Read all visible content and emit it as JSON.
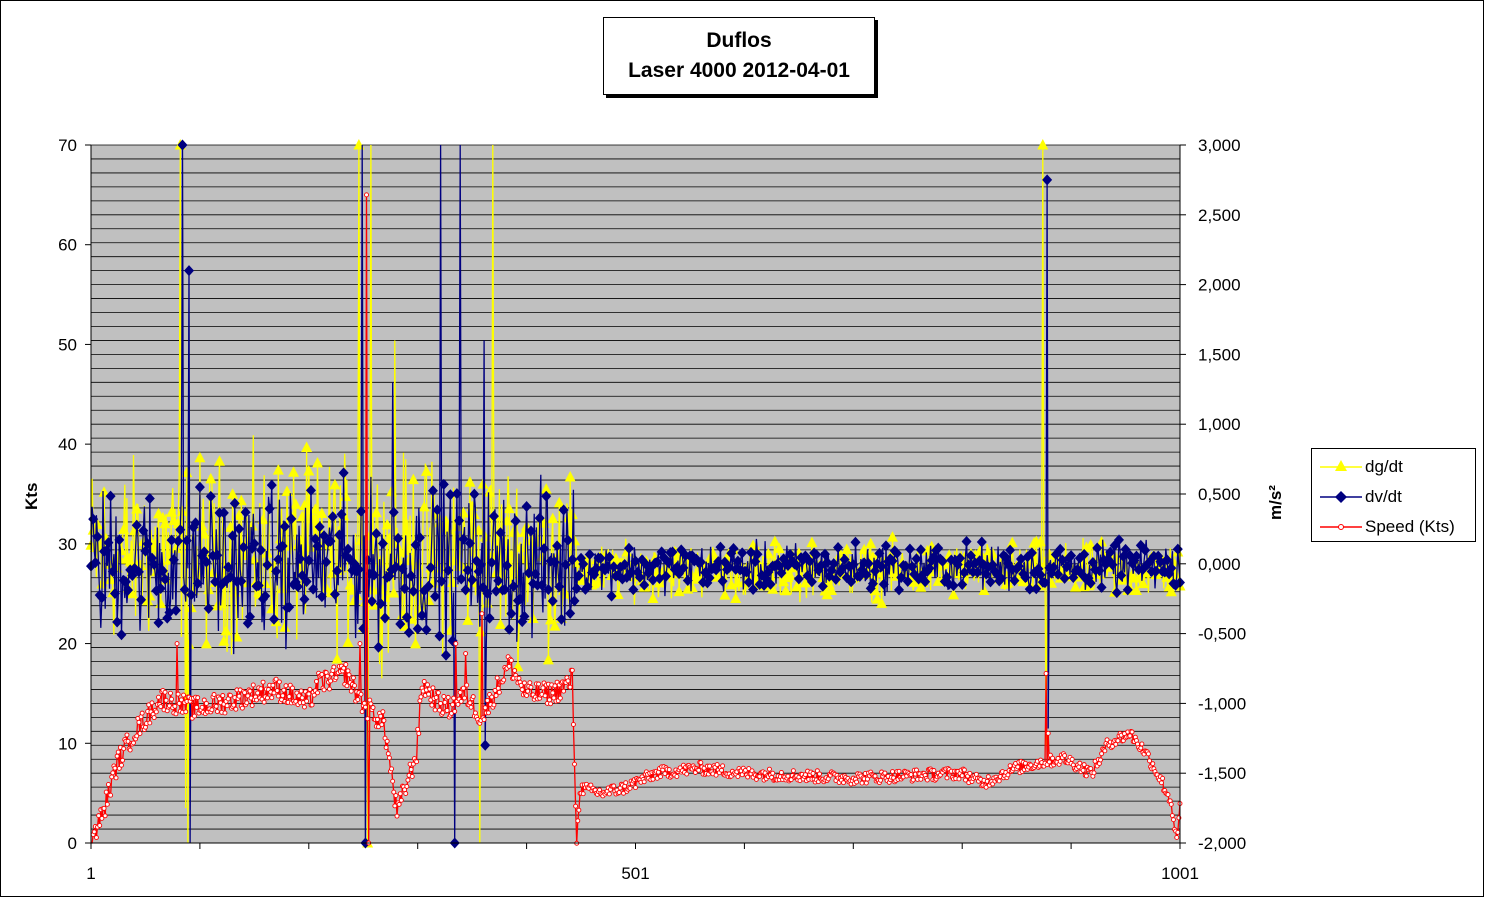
{
  "chart_data": {
    "type": "line",
    "title": "Duflos",
    "subtitle": "Laser 4000  2012-04-01",
    "ylabel": "Kts",
    "y2label": "m/s²",
    "xlim": [
      1,
      1001
    ],
    "ylim": [
      0,
      70
    ],
    "y2lim": [
      -2,
      3
    ],
    "x_tick_labels": [
      "1",
      "501",
      "1001"
    ],
    "y_tick_labels": [
      "0",
      "10",
      "20",
      "30",
      "40",
      "50",
      "60",
      "70"
    ],
    "y2_tick_labels": [
      "-2,000",
      "-1,500",
      "-1,000",
      "-0,500",
      "0,000",
      "0,500",
      "1,000",
      "1,500",
      "2,000",
      "2,500",
      "3,000"
    ],
    "grid": true,
    "legend_position": "right",
    "colors": {
      "plot_background": "#c0c0c0",
      "dg_dt": "#ffff00",
      "dv_dt": "#000080",
      "speed": "#ff0000"
    },
    "series": [
      {
        "name": "dg/dt",
        "axis": "secondary",
        "noise_regions": [
          {
            "x": [
              1,
              445
            ],
            "range": [
              -0.6,
              0.75
            ]
          },
          {
            "x": [
              445,
              1001
            ],
            "range": [
              -0.25,
              0.15
            ]
          }
        ],
        "spikes": [
          {
            "x": 83,
            "y": 3.0
          },
          {
            "x": 90,
            "y": -2.0
          },
          {
            "x": 88,
            "y": -1.75
          },
          {
            "x": 247,
            "y": 3.0
          },
          {
            "x": 255,
            "y": -2.0
          },
          {
            "x": 258,
            "y": 3.0
          },
          {
            "x": 280,
            "y": 1.6
          },
          {
            "x": 370,
            "y": 3.0
          },
          {
            "x": 358,
            "y": -2.0
          },
          {
            "x": 875,
            "y": 3.0
          },
          {
            "x": 878,
            "y": -1.3
          }
        ]
      },
      {
        "name": "dv/dt",
        "axis": "secondary",
        "noise_regions": [
          {
            "x": [
              1,
              445
            ],
            "range": [
              -0.55,
              0.55
            ]
          },
          {
            "x": [
              445,
              1001
            ],
            "range": [
              -0.2,
              0.15
            ]
          }
        ],
        "spikes": [
          {
            "x": 85,
            "y": 3.0
          },
          {
            "x": 91,
            "y": 2.1
          },
          {
            "x": 92,
            "y": -2.0
          },
          {
            "x": 250,
            "y": 3.0
          },
          {
            "x": 253,
            "y": -2.0
          },
          {
            "x": 278,
            "y": 1.3
          },
          {
            "x": 322,
            "y": 3.0
          },
          {
            "x": 335,
            "y": -2.0
          },
          {
            "x": 340,
            "y": 3.0
          },
          {
            "x": 362,
            "y": 1.6
          },
          {
            "x": 363,
            "y": -1.3
          },
          {
            "x": 879,
            "y": 2.75
          },
          {
            "x": 880,
            "y": -1.18
          }
        ]
      },
      {
        "name": "Speed (Kts)",
        "axis": "primary",
        "profile": [
          {
            "x": 1,
            "y": 0
          },
          {
            "x": 12,
            "y": 3
          },
          {
            "x": 25,
            "y": 8
          },
          {
            "x": 40,
            "y": 11
          },
          {
            "x": 55,
            "y": 13
          },
          {
            "x": 65,
            "y": 14.5
          },
          {
            "x": 80,
            "y": 14
          },
          {
            "x": 95,
            "y": 13.5
          },
          {
            "x": 120,
            "y": 14
          },
          {
            "x": 170,
            "y": 15.5
          },
          {
            "x": 200,
            "y": 14
          },
          {
            "x": 210,
            "y": 16
          },
          {
            "x": 235,
            "y": 17
          },
          {
            "x": 250,
            "y": 14
          },
          {
            "x": 270,
            "y": 12
          },
          {
            "x": 282,
            "y": 3
          },
          {
            "x": 300,
            "y": 9
          },
          {
            "x": 305,
            "y": 16
          },
          {
            "x": 320,
            "y": 14
          },
          {
            "x": 330,
            "y": 13.5
          },
          {
            "x": 345,
            "y": 15
          },
          {
            "x": 360,
            "y": 12.5
          },
          {
            "x": 385,
            "y": 18
          },
          {
            "x": 400,
            "y": 15
          },
          {
            "x": 425,
            "y": 15
          },
          {
            "x": 440,
            "y": 16
          },
          {
            "x": 443,
            "y": 16.5
          },
          {
            "x": 447,
            "y": 0
          },
          {
            "x": 450,
            "y": 5.5
          },
          {
            "x": 470,
            "y": 5
          },
          {
            "x": 490,
            "y": 5.5
          },
          {
            "x": 520,
            "y": 7
          },
          {
            "x": 560,
            "y": 7.5
          },
          {
            "x": 600,
            "y": 7
          },
          {
            "x": 700,
            "y": 6.5
          },
          {
            "x": 800,
            "y": 7
          },
          {
            "x": 820,
            "y": 6
          },
          {
            "x": 850,
            "y": 7.5
          },
          {
            "x": 870,
            "y": 8
          },
          {
            "x": 895,
            "y": 8.5
          },
          {
            "x": 920,
            "y": 7
          },
          {
            "x": 935,
            "y": 10
          },
          {
            "x": 955,
            "y": 11
          },
          {
            "x": 970,
            "y": 9
          },
          {
            "x": 985,
            "y": 6
          },
          {
            "x": 993,
            "y": 4
          },
          {
            "x": 998,
            "y": 0
          },
          {
            "x": 1001,
            "y": 3.5
          }
        ],
        "spikes": [
          {
            "x": 80,
            "y": 20
          },
          {
            "x": 82,
            "y": 14
          },
          {
            "x": 248,
            "y": 20
          },
          {
            "x": 254,
            "y": 65
          },
          {
            "x": 256,
            "y": 0
          },
          {
            "x": 336,
            "y": 20
          },
          {
            "x": 345,
            "y": 19
          },
          {
            "x": 360,
            "y": 23
          },
          {
            "x": 878,
            "y": 17
          },
          {
            "x": 880,
            "y": 11
          }
        ]
      }
    ]
  }
}
